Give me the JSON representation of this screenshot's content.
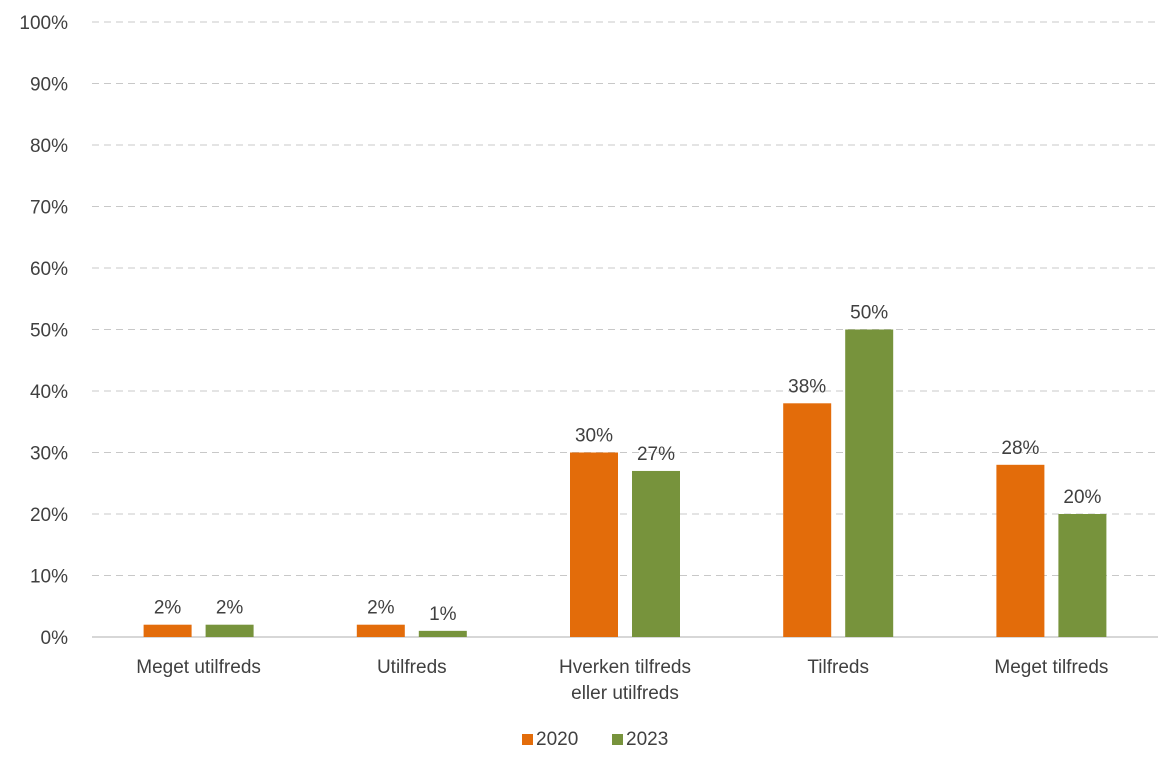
{
  "chart_data": {
    "type": "bar",
    "categories": [
      [
        "Meget utilfreds"
      ],
      [
        "Utilfreds"
      ],
      [
        "Hverken tilfreds",
        "eller utilfreds"
      ],
      [
        "Tilfreds"
      ],
      [
        "Meget tilfreds"
      ]
    ],
    "series": [
      {
        "name": "2020",
        "color": "#E36C0A",
        "values": [
          2,
          2,
          30,
          38,
          28
        ],
        "labels": [
          "2%",
          "2%",
          "30%",
          "38%",
          "28%"
        ]
      },
      {
        "name": "2023",
        "color": "#77933C",
        "values": [
          2,
          1,
          27,
          50,
          20
        ],
        "labels": [
          "2%",
          "1%",
          "27%",
          "50%",
          "20%"
        ]
      }
    ],
    "ylim": [
      0,
      100
    ],
    "yticks": [
      0,
      10,
      20,
      30,
      40,
      50,
      60,
      70,
      80,
      90,
      100
    ],
    "ytick_labels": [
      "0%",
      "10%",
      "20%",
      "30%",
      "40%",
      "50%",
      "60%",
      "70%",
      "80%",
      "90%",
      "100%"
    ],
    "grid": true,
    "legend_position": "bottom-center"
  }
}
